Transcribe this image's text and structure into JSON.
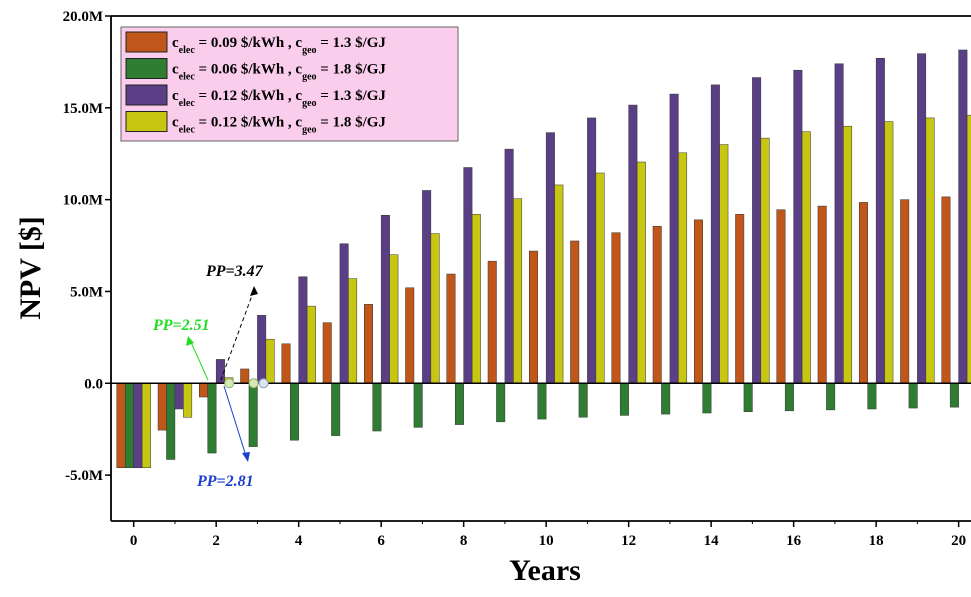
{
  "chart_data": {
    "type": "bar",
    "xlabel": "Years",
    "ylabel": "NPV [$]",
    "x": [
      0,
      1,
      2,
      3,
      4,
      5,
      6,
      7,
      8,
      9,
      10,
      11,
      12,
      13,
      14,
      15,
      16,
      17,
      18,
      19,
      20
    ],
    "xlim": [
      -0.55,
      20.3
    ],
    "ylim": [
      -7.5,
      20.0
    ],
    "x_ticks": [
      0,
      2,
      4,
      6,
      8,
      10,
      12,
      14,
      16,
      18,
      20
    ],
    "x_tick_labels": [
      "0",
      "2",
      "4",
      "6",
      "8",
      "10",
      "12",
      "14",
      "16",
      "18",
      "20"
    ],
    "y_ticks": [
      -5.0,
      0.0,
      5.0,
      10.0,
      15.0,
      20.0
    ],
    "y_tick_labels": [
      "-5.0M",
      "0.0",
      "5.0M",
      "10.0M",
      "15.0M",
      "20.0M"
    ],
    "y_unit": "M$",
    "legend_position": "top-left",
    "series": [
      {
        "name_main": "c",
        "name_parts": [
          {
            "t": "c",
            "sub": "elec"
          },
          {
            "t": " = 0.09 $/kWh , c",
            "sub": "geo"
          },
          {
            "t": " = 1.3 $/GJ",
            "sub": ""
          }
        ],
        "color": "#C0561A",
        "values": [
          -4.6,
          -2.55,
          -0.75,
          0.78,
          2.15,
          3.3,
          4.3,
          5.2,
          5.95,
          6.65,
          7.2,
          7.75,
          8.2,
          8.55,
          8.9,
          9.2,
          9.45,
          9.65,
          9.85,
          10.0,
          10.15
        ]
      },
      {
        "name_parts": [
          {
            "t": "c",
            "sub": "elec"
          },
          {
            "t": " = 0.06 $/kWh , c",
            "sub": "geo"
          },
          {
            "t": " = 1.8 $/GJ",
            "sub": ""
          }
        ],
        "color": "#2E7D32",
        "values": [
          -4.6,
          -4.15,
          -3.8,
          -3.45,
          -3.1,
          -2.85,
          -2.6,
          -2.4,
          -2.25,
          -2.1,
          -1.95,
          -1.85,
          -1.75,
          -1.68,
          -1.62,
          -1.55,
          -1.5,
          -1.45,
          -1.4,
          -1.35,
          -1.3
        ]
      },
      {
        "name_parts": [
          {
            "t": "c",
            "sub": "elec"
          },
          {
            "t": " = 0.12 $/kWh , c",
            "sub": "geo"
          },
          {
            "t": " = 1.3 $/GJ",
            "sub": ""
          }
        ],
        "color": "#5B3F86",
        "values": [
          -4.6,
          -1.4,
          1.3,
          3.7,
          5.8,
          7.6,
          9.15,
          10.5,
          11.75,
          12.75,
          13.65,
          14.45,
          15.15,
          15.75,
          16.25,
          16.65,
          17.05,
          17.4,
          17.7,
          17.95,
          18.15
        ]
      },
      {
        "name_parts": [
          {
            "t": "c",
            "sub": "elec"
          },
          {
            "t": " = 0.12 $/kWh , c",
            "sub": "geo"
          },
          {
            "t": " = 1.8 $/GJ",
            "sub": ""
          }
        ],
        "color": "#C6C613",
        "values": [
          -4.6,
          -1.85,
          0.3,
          2.4,
          4.2,
          5.7,
          7.0,
          8.15,
          9.2,
          10.05,
          10.8,
          11.45,
          12.05,
          12.55,
          13.0,
          13.35,
          13.7,
          14.0,
          14.25,
          14.45,
          14.6
        ]
      }
    ],
    "annotations": [
      {
        "text": "PP=3.47",
        "color": "#000000",
        "x": 3.47
      },
      {
        "text": "PP=2.51",
        "color": "#22DD22",
        "x": 2.51
      },
      {
        "text": "PP=2.81",
        "color": "#1A3FCC",
        "x": 2.81
      }
    ]
  }
}
